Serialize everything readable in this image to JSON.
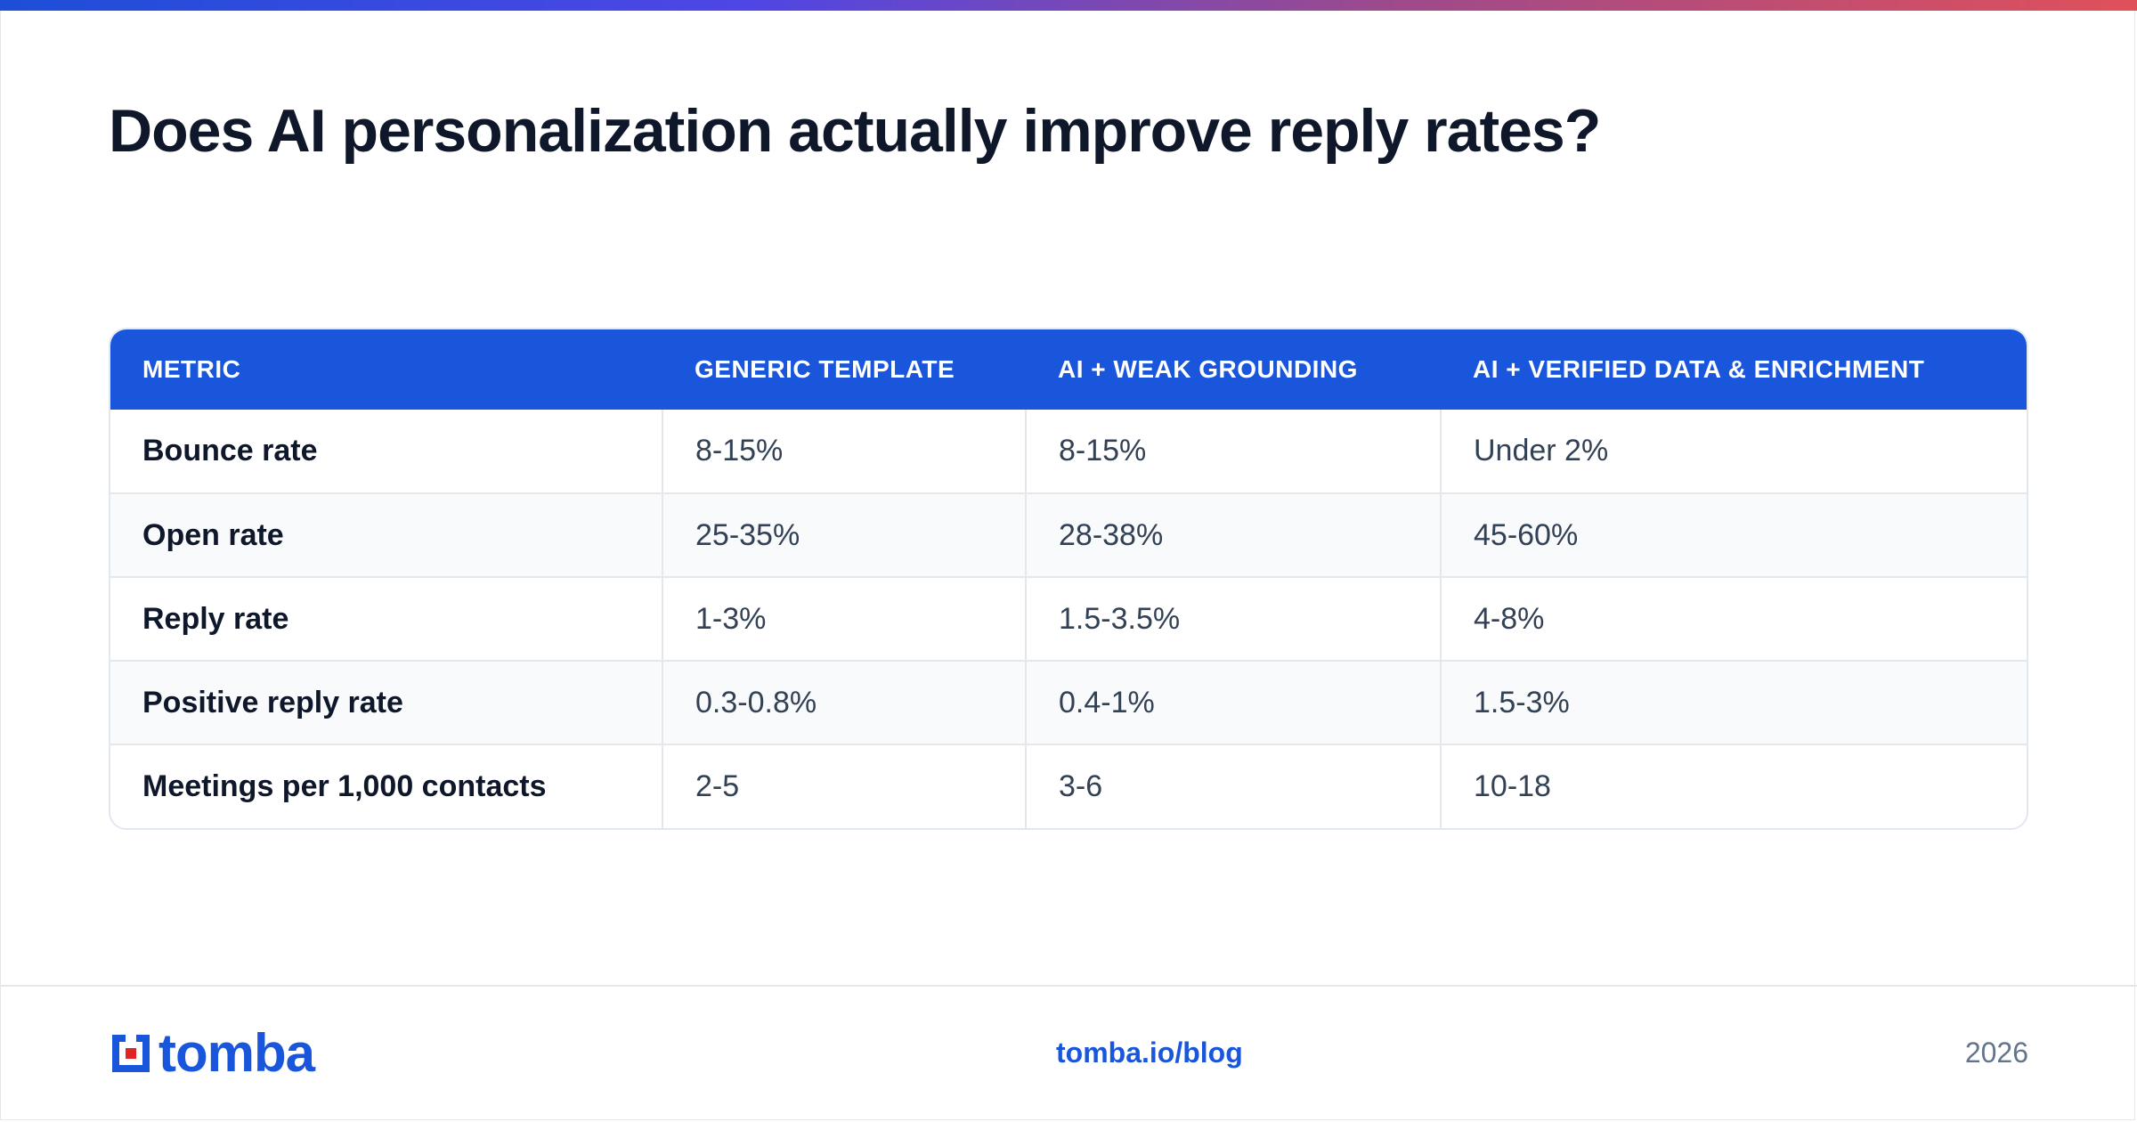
{
  "title": "Does AI personalization actually improve reply rates?",
  "colors": {
    "accent": "#1a56db",
    "logo_accent": "#e02424",
    "row_alt": "#f8fafc",
    "border": "#e5e7eb"
  },
  "table": {
    "headers": [
      "METRIC",
      "GENERIC TEMPLATE",
      "AI + WEAK GROUNDING",
      "AI + VERIFIED DATA & ENRICHMENT"
    ],
    "rows": [
      {
        "metric": "Bounce rate",
        "generic": "8-15%",
        "weak": "8-15%",
        "verified": "Under 2%"
      },
      {
        "metric": "Open rate",
        "generic": "25-35%",
        "weak": "28-38%",
        "verified": "45-60%"
      },
      {
        "metric": "Reply rate",
        "generic": "1-3%",
        "weak": "1.5-3.5%",
        "verified": "4-8%"
      },
      {
        "metric": "Positive reply rate",
        "generic": "0.3-0.8%",
        "weak": "0.4-1%",
        "verified": "1.5-3%"
      },
      {
        "metric": "Meetings per 1,000 contacts",
        "generic": "2-5",
        "weak": "3-6",
        "verified": "10-18"
      }
    ]
  },
  "footer": {
    "logo_text": "tomba",
    "logo_icon": "tomba-logo-icon",
    "link": "tomba.io/blog",
    "year": "2026"
  }
}
